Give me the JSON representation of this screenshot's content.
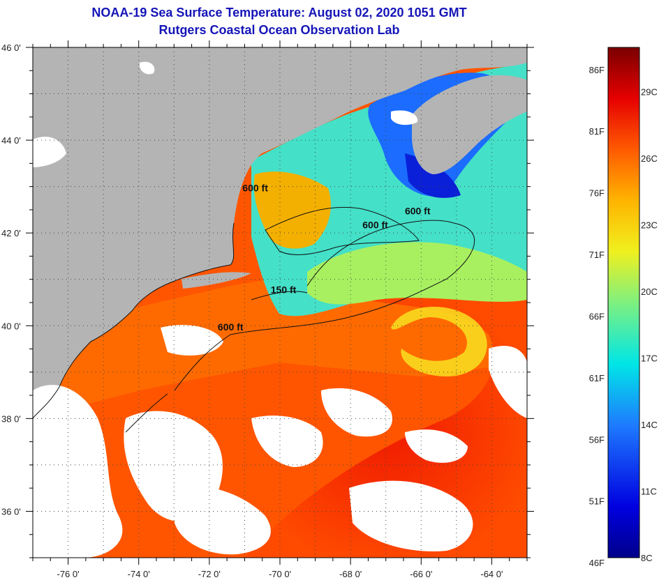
{
  "header": {
    "title": "NOAA-19 Sea Surface Temperature:  August 02, 2020 1051 GMT",
    "subtitle": "Rutgers Coastal Ocean Observation Lab"
  },
  "axes": {
    "lon_ticks": [
      {
        "value": -76,
        "label": "-76 0'"
      },
      {
        "value": -74,
        "label": "-74 0'"
      },
      {
        "value": -72,
        "label": "-72 0'"
      },
      {
        "value": -70,
        "label": "-70 0'"
      },
      {
        "value": -68,
        "label": "-68 0'"
      },
      {
        "value": -66,
        "label": "-66 0'"
      },
      {
        "value": -64,
        "label": "-64 0'"
      }
    ],
    "lat_ticks": [
      {
        "value": 46,
        "label": "46 0'"
      },
      {
        "value": 44,
        "label": "44 0'"
      },
      {
        "value": 42,
        "label": "42 0'"
      },
      {
        "value": 40,
        "label": "40 0'"
      },
      {
        "value": 38,
        "label": "38 0'"
      },
      {
        "value": 36,
        "label": "36 0'"
      }
    ],
    "lon_range": [
      -77,
      -63
    ],
    "lat_range": [
      35,
      46
    ],
    "grid": true
  },
  "contours": [
    {
      "label": "600 ft",
      "lon": -70.7,
      "lat": 42.9
    },
    {
      "label": "600 ft",
      "lon": -66.1,
      "lat": 42.4
    },
    {
      "label": "600 ft",
      "lon": -67.3,
      "lat": 42.1
    },
    {
      "label": "150 ft",
      "lon": -69.9,
      "lat": 40.7
    },
    {
      "label": "600 ft",
      "lon": -71.4,
      "lat": 39.9
    }
  ],
  "colorbar": {
    "fahrenheit": [
      {
        "value": 86,
        "label": "86F"
      },
      {
        "value": 81,
        "label": "81F"
      },
      {
        "value": 76,
        "label": "76F"
      },
      {
        "value": 71,
        "label": "71F"
      },
      {
        "value": 66,
        "label": "66F"
      },
      {
        "value": 61,
        "label": "61F"
      },
      {
        "value": 56,
        "label": "56F"
      },
      {
        "value": 51,
        "label": "51F"
      },
      {
        "value": 46,
        "label": "46F"
      }
    ],
    "celsius": [
      {
        "value": 29,
        "label": "29C"
      },
      {
        "value": 26,
        "label": "26C"
      },
      {
        "value": 23,
        "label": "23C"
      },
      {
        "value": 20,
        "label": "20C"
      },
      {
        "value": 17,
        "label": "17C"
      },
      {
        "value": 14,
        "label": "14C"
      },
      {
        "value": 11,
        "label": "11C"
      },
      {
        "value": 8,
        "label": "8C"
      }
    ],
    "c_range": [
      8,
      31
    ]
  },
  "colors": {
    "title": "#1515b8",
    "land": "#b4b4b4",
    "cloud": "#ffffff",
    "contour": "#111111"
  }
}
